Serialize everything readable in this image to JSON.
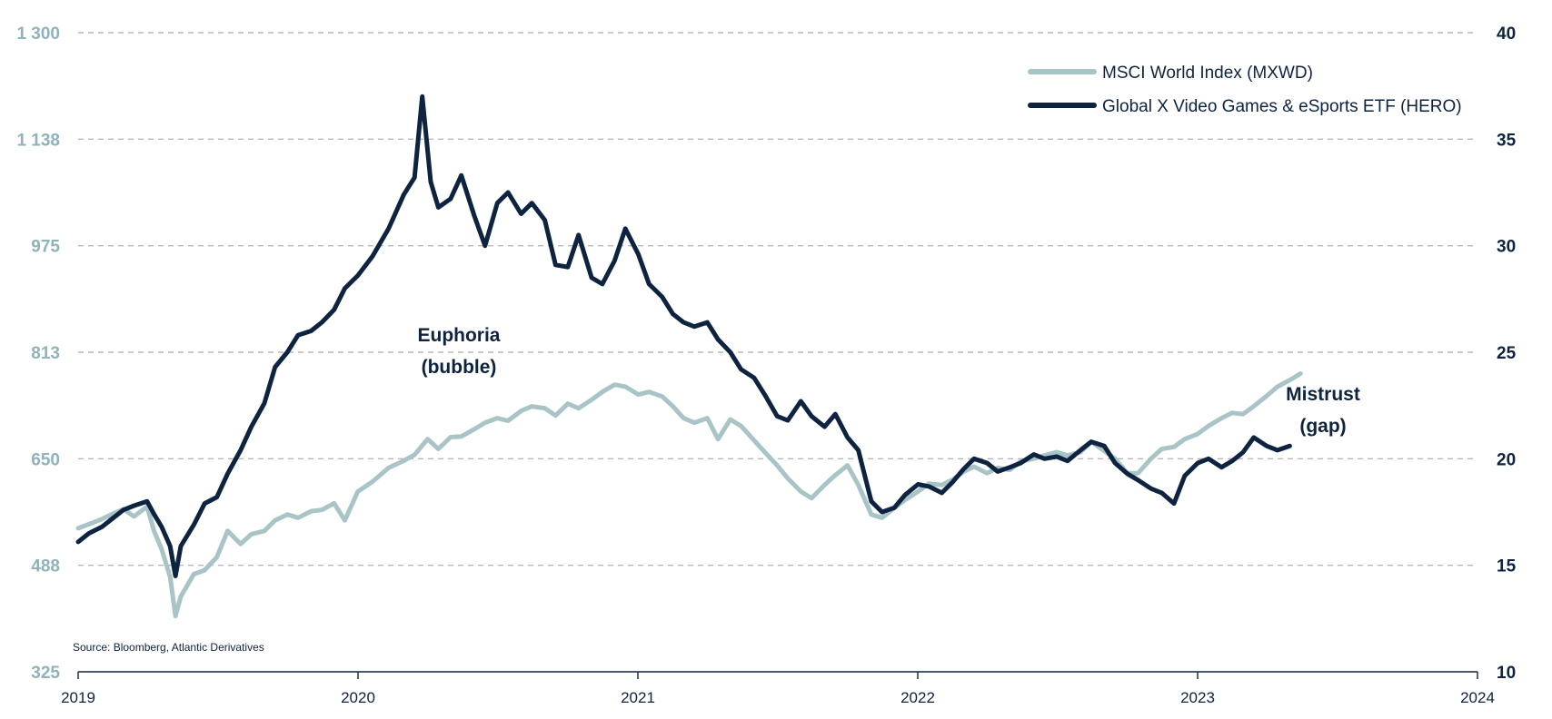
{
  "chart_data": {
    "type": "line",
    "title": "",
    "source": "Source: Bloomberg, Atlantic Derivatives",
    "x_axis": {
      "ticks": [
        "2019",
        "2020",
        "2021",
        "2022",
        "2023",
        "2024"
      ],
      "range": [
        "2019-01-01",
        "2024-01-01"
      ]
    },
    "y_left": {
      "ticks": [
        "325",
        "488",
        "650",
        "813",
        "975",
        "1 138",
        "1 300"
      ],
      "range": [
        325,
        1300
      ]
    },
    "y_right": {
      "ticks": [
        "10",
        "15",
        "20",
        "25",
        "30",
        "35",
        "40"
      ],
      "range": [
        10,
        40
      ]
    },
    "grid": "horizontal dashed",
    "legend": {
      "placement": "top-right",
      "entries": [
        "MSCI World Index (MXWD)",
        "Global X Video Games & eSports ETF (HERO)"
      ]
    },
    "annotations": [
      {
        "lines": [
          "Euphoria",
          "(bubble)"
        ],
        "at_date": "2020-04-01"
      },
      {
        "lines": [
          "Mistrust",
          "(gap)"
        ],
        "at_date": "2023-05-15"
      }
    ],
    "colors": {
      "msci": "#a9c4c7",
      "hero": "#0d2340",
      "grid": "#b8b8b8",
      "left_axis": "#8fb3b8",
      "right_axis": "#0d2340"
    },
    "series": [
      {
        "name": "MSCI World Index (MXWD)",
        "axis": "left",
        "points": [
          [
            "2019-01-01",
            544
          ],
          [
            "2019-01-15",
            550
          ],
          [
            "2019-02-01",
            558
          ],
          [
            "2019-02-15",
            566
          ],
          [
            "2019-03-01",
            573
          ],
          [
            "2019-03-15",
            562
          ],
          [
            "2019-04-01",
            577
          ],
          [
            "2019-04-10",
            540
          ],
          [
            "2019-04-20",
            512
          ],
          [
            "2019-05-01",
            470
          ],
          [
            "2019-05-08",
            410
          ],
          [
            "2019-05-15",
            440
          ],
          [
            "2019-06-01",
            474
          ],
          [
            "2019-06-15",
            480
          ],
          [
            "2019-07-01",
            500
          ],
          [
            "2019-07-15",
            540
          ],
          [
            "2019-08-01",
            520
          ],
          [
            "2019-08-15",
            535
          ],
          [
            "2019-09-01",
            540
          ],
          [
            "2019-09-15",
            556
          ],
          [
            "2019-10-01",
            565
          ],
          [
            "2019-10-15",
            560
          ],
          [
            "2019-11-01",
            570
          ],
          [
            "2019-11-15",
            572
          ],
          [
            "2019-12-01",
            582
          ],
          [
            "2019-12-15",
            556
          ],
          [
            "2020-01-01",
            600
          ],
          [
            "2020-01-20",
            615
          ],
          [
            "2020-02-10",
            636
          ],
          [
            "2020-03-01",
            647
          ],
          [
            "2020-03-15",
            656
          ],
          [
            "2020-04-01",
            680
          ],
          [
            "2020-04-15",
            665
          ],
          [
            "2020-05-01",
            683
          ],
          [
            "2020-05-15",
            684
          ],
          [
            "2020-06-01",
            695
          ],
          [
            "2020-06-15",
            705
          ],
          [
            "2020-07-01",
            712
          ],
          [
            "2020-07-15",
            708
          ],
          [
            "2020-08-01",
            723
          ],
          [
            "2020-08-15",
            730
          ],
          [
            "2020-09-01",
            727
          ],
          [
            "2020-09-15",
            716
          ],
          [
            "2020-10-01",
            734
          ],
          [
            "2020-10-15",
            727
          ],
          [
            "2020-11-01",
            740
          ],
          [
            "2020-11-15",
            752
          ],
          [
            "2020-12-01",
            763
          ],
          [
            "2020-12-15",
            760
          ],
          [
            "2021-01-01",
            748
          ],
          [
            "2021-01-15",
            752
          ],
          [
            "2021-02-01",
            745
          ],
          [
            "2021-02-15",
            730
          ],
          [
            "2021-03-01",
            712
          ],
          [
            "2021-03-15",
            705
          ],
          [
            "2021-04-01",
            712
          ],
          [
            "2021-04-15",
            680
          ],
          [
            "2021-05-01",
            710
          ],
          [
            "2021-05-15",
            700
          ],
          [
            "2021-06-01",
            678
          ],
          [
            "2021-06-15",
            660
          ],
          [
            "2021-07-01",
            640
          ],
          [
            "2021-07-15",
            620
          ],
          [
            "2021-08-01",
            600
          ],
          [
            "2021-08-15",
            590
          ],
          [
            "2021-09-01",
            610
          ],
          [
            "2021-09-15",
            625
          ],
          [
            "2021-10-01",
            640
          ],
          [
            "2021-10-15",
            610
          ],
          [
            "2021-11-01",
            565
          ],
          [
            "2021-11-15",
            560
          ],
          [
            "2021-12-01",
            575
          ],
          [
            "2021-12-15",
            587
          ],
          [
            "2022-01-01",
            600
          ],
          [
            "2022-01-15",
            612
          ],
          [
            "2022-02-01",
            610
          ],
          [
            "2022-02-15",
            618
          ],
          [
            "2022-03-01",
            630
          ],
          [
            "2022-03-15",
            638
          ],
          [
            "2022-04-01",
            628
          ],
          [
            "2022-04-15",
            636
          ],
          [
            "2022-05-01",
            633
          ],
          [
            "2022-05-15",
            646
          ],
          [
            "2022-06-01",
            650
          ],
          [
            "2022-06-15",
            655
          ],
          [
            "2022-07-01",
            660
          ],
          [
            "2022-07-15",
            655
          ],
          [
            "2022-08-01",
            660
          ],
          [
            "2022-08-15",
            676
          ],
          [
            "2022-09-01",
            662
          ],
          [
            "2022-09-15",
            650
          ],
          [
            "2022-10-01",
            628
          ],
          [
            "2022-10-15",
            628
          ],
          [
            "2022-11-01",
            650
          ],
          [
            "2022-11-15",
            665
          ],
          [
            "2022-12-01",
            668
          ],
          [
            "2022-12-15",
            680
          ],
          [
            "2023-01-01",
            688
          ],
          [
            "2023-01-15",
            700
          ],
          [
            "2023-02-01",
            712
          ],
          [
            "2023-02-15",
            720
          ],
          [
            "2023-03-01",
            718
          ],
          [
            "2023-03-15",
            730
          ],
          [
            "2023-04-01",
            746
          ],
          [
            "2023-04-15",
            760
          ],
          [
            "2023-05-01",
            770
          ],
          [
            "2023-05-15",
            780
          ]
        ]
      },
      {
        "name": "Global X Video Games & eSports ETF (HERO)",
        "axis": "right",
        "points": [
          [
            "2019-01-01",
            16.1
          ],
          [
            "2019-01-15",
            16.5
          ],
          [
            "2019-02-01",
            16.8
          ],
          [
            "2019-02-15",
            17.2
          ],
          [
            "2019-03-01",
            17.6
          ],
          [
            "2019-03-15",
            17.8
          ],
          [
            "2019-04-01",
            18.0
          ],
          [
            "2019-04-10",
            17.4
          ],
          [
            "2019-04-20",
            16.8
          ],
          [
            "2019-05-01",
            15.9
          ],
          [
            "2019-05-08",
            14.5
          ],
          [
            "2019-05-15",
            15.9
          ],
          [
            "2019-06-01",
            16.9
          ],
          [
            "2019-06-15",
            17.9
          ],
          [
            "2019-07-01",
            18.2
          ],
          [
            "2019-07-15",
            19.3
          ],
          [
            "2019-08-01",
            20.4
          ],
          [
            "2019-08-15",
            21.5
          ],
          [
            "2019-09-01",
            22.6
          ],
          [
            "2019-09-15",
            24.3
          ],
          [
            "2019-10-01",
            25.0
          ],
          [
            "2019-10-15",
            25.8
          ],
          [
            "2019-11-01",
            26.0
          ],
          [
            "2019-11-15",
            26.4
          ],
          [
            "2019-12-01",
            27.0
          ],
          [
            "2019-12-15",
            28.0
          ],
          [
            "2020-01-01",
            28.6
          ],
          [
            "2020-01-20",
            29.5
          ],
          [
            "2020-02-10",
            30.8
          ],
          [
            "2020-03-01",
            32.4
          ],
          [
            "2020-03-15",
            33.2
          ],
          [
            "2020-03-25",
            37.0
          ],
          [
            "2020-04-05",
            33.0
          ],
          [
            "2020-04-15",
            31.8
          ],
          [
            "2020-05-01",
            32.2
          ],
          [
            "2020-05-15",
            33.3
          ],
          [
            "2020-06-01",
            31.4
          ],
          [
            "2020-06-15",
            30.0
          ],
          [
            "2020-07-01",
            32.0
          ],
          [
            "2020-07-15",
            32.5
          ],
          [
            "2020-08-01",
            31.5
          ],
          [
            "2020-08-15",
            32.0
          ],
          [
            "2020-09-01",
            31.2
          ],
          [
            "2020-09-15",
            29.1
          ],
          [
            "2020-10-01",
            29.0
          ],
          [
            "2020-10-15",
            30.5
          ],
          [
            "2020-11-01",
            28.5
          ],
          [
            "2020-11-15",
            28.2
          ],
          [
            "2020-12-01",
            29.3
          ],
          [
            "2020-12-15",
            30.8
          ],
          [
            "2021-01-01",
            29.6
          ],
          [
            "2021-01-15",
            28.2
          ],
          [
            "2021-02-01",
            27.6
          ],
          [
            "2021-02-15",
            26.8
          ],
          [
            "2021-03-01",
            26.4
          ],
          [
            "2021-03-15",
            26.2
          ],
          [
            "2021-04-01",
            26.4
          ],
          [
            "2021-04-15",
            25.6
          ],
          [
            "2021-05-01",
            25.0
          ],
          [
            "2021-05-15",
            24.2
          ],
          [
            "2021-06-01",
            23.8
          ],
          [
            "2021-06-15",
            23.0
          ],
          [
            "2021-07-01",
            22.0
          ],
          [
            "2021-07-15",
            21.8
          ],
          [
            "2021-08-01",
            22.7
          ],
          [
            "2021-08-15",
            22.0
          ],
          [
            "2021-09-01",
            21.5
          ],
          [
            "2021-09-15",
            22.1
          ],
          [
            "2021-10-01",
            21.0
          ],
          [
            "2021-10-15",
            20.4
          ],
          [
            "2021-11-01",
            18.0
          ],
          [
            "2021-11-15",
            17.5
          ],
          [
            "2021-12-01",
            17.7
          ],
          [
            "2021-12-15",
            18.3
          ],
          [
            "2022-01-01",
            18.8
          ],
          [
            "2022-01-15",
            18.7
          ],
          [
            "2022-02-01",
            18.4
          ],
          [
            "2022-02-15",
            18.9
          ],
          [
            "2022-03-01",
            19.5
          ],
          [
            "2022-03-15",
            20.0
          ],
          [
            "2022-04-01",
            19.8
          ],
          [
            "2022-04-15",
            19.4
          ],
          [
            "2022-05-01",
            19.6
          ],
          [
            "2022-05-15",
            19.8
          ],
          [
            "2022-06-01",
            20.2
          ],
          [
            "2022-06-15",
            20.0
          ],
          [
            "2022-07-01",
            20.1
          ],
          [
            "2022-07-15",
            19.9
          ],
          [
            "2022-08-01",
            20.4
          ],
          [
            "2022-08-15",
            20.8
          ],
          [
            "2022-09-01",
            20.6
          ],
          [
            "2022-09-15",
            19.8
          ],
          [
            "2022-10-01",
            19.3
          ],
          [
            "2022-10-15",
            19.0
          ],
          [
            "2022-11-01",
            18.6
          ],
          [
            "2022-11-15",
            18.4
          ],
          [
            "2022-12-01",
            17.9
          ],
          [
            "2022-12-15",
            19.2
          ],
          [
            "2023-01-01",
            19.8
          ],
          [
            "2023-01-15",
            20.0
          ],
          [
            "2023-02-01",
            19.6
          ],
          [
            "2023-02-15",
            19.9
          ],
          [
            "2023-03-01",
            20.3
          ],
          [
            "2023-03-15",
            21.0
          ],
          [
            "2023-04-01",
            20.6
          ],
          [
            "2023-04-15",
            20.4
          ],
          [
            "2023-05-01",
            20.6
          ]
        ]
      }
    ]
  }
}
